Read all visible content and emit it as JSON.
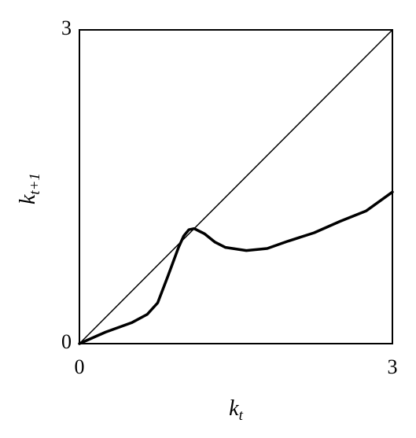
{
  "chart_data": {
    "type": "line",
    "xlabel": {
      "base": "k",
      "sub": "t"
    },
    "ylabel": {
      "base": "k",
      "sub": "t+1"
    },
    "xlim": [
      0,
      3
    ],
    "ylim": [
      0,
      3
    ],
    "xticks": [
      0,
      3
    ],
    "yticks": [
      0,
      3
    ],
    "grid": false,
    "series": [
      {
        "x": [
          0,
          3
        ],
        "values": [
          0,
          3
        ],
        "color": "#000000",
        "width": 1.5
      },
      {
        "x": [
          0,
          0.25,
          0.5,
          0.65,
          0.75,
          0.85,
          0.95,
          1.0,
          1.05,
          1.1,
          1.2,
          1.3,
          1.4,
          1.6,
          1.8,
          2.0,
          2.25,
          2.5,
          2.75,
          3.0
        ],
        "values": [
          0,
          0.11,
          0.2,
          0.28,
          0.39,
          0.65,
          0.92,
          1.03,
          1.09,
          1.1,
          1.05,
          0.97,
          0.92,
          0.89,
          0.91,
          0.98,
          1.06,
          1.17,
          1.27,
          1.45
        ],
        "color": "#000000",
        "width": 3.5
      }
    ]
  }
}
